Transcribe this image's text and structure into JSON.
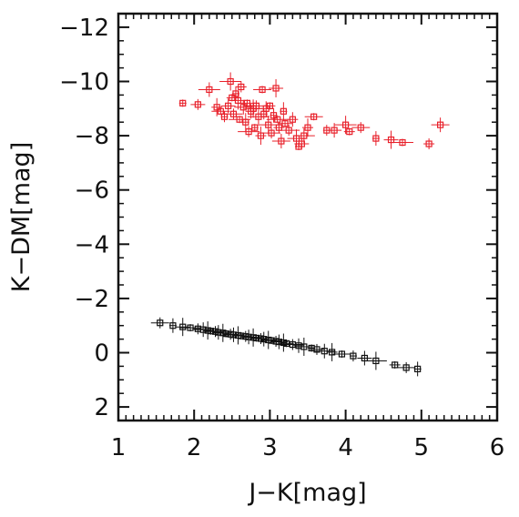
{
  "chart_data": {
    "type": "scatter",
    "title": "",
    "xlabel": "J−K[mag]",
    "ylabel": "K−DM[mag]",
    "xlim": [
      1,
      6
    ],
    "ylim": [
      2.5,
      -12.5
    ],
    "y_inverted": true,
    "x_ticks": [
      1,
      2,
      3,
      4,
      5,
      6
    ],
    "x_tick_labels": [
      "1",
      "2",
      "3",
      "4",
      "5",
      "6"
    ],
    "y_ticks": [
      -12,
      -10,
      -8,
      -6,
      -4,
      -2,
      0,
      2
    ],
    "y_tick_labels": [
      "−12",
      "−10",
      "−8",
      "−6",
      "−4",
      "−2",
      "0",
      "2"
    ],
    "grid": false,
    "legend": "none",
    "series": [
      {
        "color": "#e8202a",
        "marker": "open-square-with-errorbars",
        "points": [
          [
            1.85,
            -9.2
          ],
          [
            2.05,
            -9.15
          ],
          [
            2.2,
            -9.7
          ],
          [
            2.3,
            -9.05
          ],
          [
            2.35,
            -8.9
          ],
          [
            2.4,
            -8.7
          ],
          [
            2.45,
            -9.1
          ],
          [
            2.48,
            -10.0
          ],
          [
            2.5,
            -9.4
          ],
          [
            2.52,
            -8.8
          ],
          [
            2.55,
            -9.55
          ],
          [
            2.58,
            -9.3
          ],
          [
            2.6,
            -8.6
          ],
          [
            2.62,
            -9.8
          ],
          [
            2.65,
            -9.05
          ],
          [
            2.68,
            -8.5
          ],
          [
            2.7,
            -9.2
          ],
          [
            2.72,
            -8.15
          ],
          [
            2.75,
            -8.9
          ],
          [
            2.78,
            -9.0
          ],
          [
            2.8,
            -8.3
          ],
          [
            2.82,
            -9.1
          ],
          [
            2.85,
            -8.7
          ],
          [
            2.88,
            -8.0
          ],
          [
            2.9,
            -9.7
          ],
          [
            2.92,
            -8.8
          ],
          [
            2.95,
            -9.0
          ],
          [
            2.98,
            -8.4
          ],
          [
            3.0,
            -9.1
          ],
          [
            3.02,
            -8.1
          ],
          [
            3.05,
            -8.75
          ],
          [
            3.08,
            -9.75
          ],
          [
            3.1,
            -8.6
          ],
          [
            3.12,
            -8.3
          ],
          [
            3.15,
            -7.8
          ],
          [
            3.18,
            -8.9
          ],
          [
            3.2,
            -8.45
          ],
          [
            3.25,
            -8.2
          ],
          [
            3.3,
            -8.6
          ],
          [
            3.35,
            -7.9
          ],
          [
            3.38,
            -7.6
          ],
          [
            3.42,
            -7.7
          ],
          [
            3.45,
            -8.0
          ],
          [
            3.5,
            -8.3
          ],
          [
            3.58,
            -8.7
          ],
          [
            3.75,
            -8.2
          ],
          [
            3.85,
            -8.2
          ],
          [
            4.0,
            -8.4
          ],
          [
            4.05,
            -8.15
          ],
          [
            4.2,
            -8.3
          ],
          [
            4.4,
            -7.9
          ],
          [
            4.6,
            -7.85
          ],
          [
            4.75,
            -7.75
          ],
          [
            5.1,
            -7.7
          ],
          [
            5.25,
            -8.4
          ]
        ]
      },
      {
        "color": "#111111",
        "marker": "open-square-with-errorbars",
        "points": [
          [
            1.55,
            -1.1
          ],
          [
            1.72,
            -1.0
          ],
          [
            1.85,
            -0.95
          ],
          [
            1.95,
            -0.92
          ],
          [
            2.05,
            -0.88
          ],
          [
            2.12,
            -0.85
          ],
          [
            2.18,
            -0.82
          ],
          [
            2.22,
            -0.8
          ],
          [
            2.28,
            -0.78
          ],
          [
            2.32,
            -0.75
          ],
          [
            2.38,
            -0.73
          ],
          [
            2.42,
            -0.7
          ],
          [
            2.48,
            -0.68
          ],
          [
            2.52,
            -0.66
          ],
          [
            2.58,
            -0.64
          ],
          [
            2.62,
            -0.62
          ],
          [
            2.68,
            -0.6
          ],
          [
            2.72,
            -0.58
          ],
          [
            2.78,
            -0.56
          ],
          [
            2.82,
            -0.54
          ],
          [
            2.88,
            -0.52
          ],
          [
            2.92,
            -0.5
          ],
          [
            2.98,
            -0.47
          ],
          [
            3.02,
            -0.45
          ],
          [
            3.08,
            -0.42
          ],
          [
            3.12,
            -0.4
          ],
          [
            3.18,
            -0.37
          ],
          [
            3.22,
            -0.34
          ],
          [
            3.3,
            -0.3
          ],
          [
            3.38,
            -0.26
          ],
          [
            3.45,
            -0.22
          ],
          [
            3.55,
            -0.17
          ],
          [
            3.62,
            -0.12
          ],
          [
            3.72,
            -0.06
          ],
          [
            3.82,
            -0.02
          ],
          [
            3.95,
            0.05
          ],
          [
            4.1,
            0.12
          ],
          [
            4.25,
            0.2
          ],
          [
            4.4,
            0.3
          ],
          [
            4.65,
            0.45
          ],
          [
            4.8,
            0.55
          ],
          [
            4.95,
            0.6
          ]
        ]
      }
    ]
  }
}
